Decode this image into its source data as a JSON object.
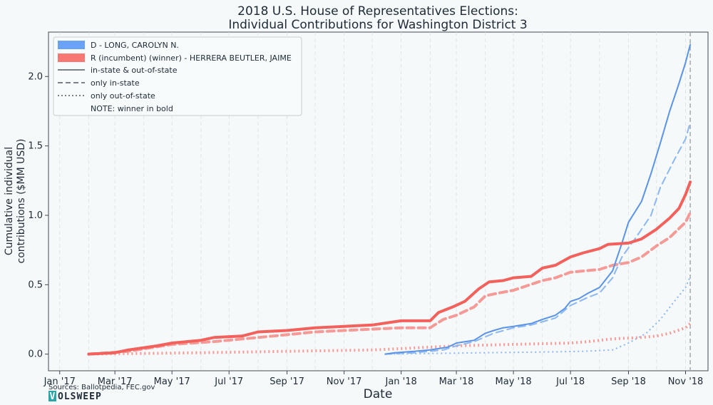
{
  "chart_data": {
    "type": "line",
    "title": "2018 U.S. House of Representatives Elections:",
    "subtitle": "Individual Contributions for Washington District 3",
    "xlabel": "Date",
    "ylabel_line1": "Cumulative individual",
    "ylabel_line2": "contributions ($MM USD)",
    "xlim": [
      "2016-12-20",
      "2018-11-25"
    ],
    "ylim": [
      -0.12,
      2.32
    ],
    "x_ticks": [
      {
        "date": "2017-01-01",
        "label": "Jan '17"
      },
      {
        "date": "2017-03-01",
        "label": "Mar '17"
      },
      {
        "date": "2017-05-01",
        "label": "May '17"
      },
      {
        "date": "2017-07-01",
        "label": "Jul '17"
      },
      {
        "date": "2017-09-01",
        "label": "Sep '17"
      },
      {
        "date": "2017-11-01",
        "label": "Nov '17"
      },
      {
        "date": "2018-01-01",
        "label": "Jan '18"
      },
      {
        "date": "2018-03-01",
        "label": "Mar '18"
      },
      {
        "date": "2018-05-01",
        "label": "May '18"
      },
      {
        "date": "2018-07-01",
        "label": "Jul '18"
      },
      {
        "date": "2018-09-01",
        "label": "Sep '18"
      },
      {
        "date": "2018-11-01",
        "label": "Nov '18"
      }
    ],
    "y_ticks": [
      {
        "value": 0.0,
        "label": "0.0"
      },
      {
        "value": 0.5,
        "label": "0.5"
      },
      {
        "value": 1.0,
        "label": "1.0"
      },
      {
        "value": 1.5,
        "label": "1.5"
      },
      {
        "value": 2.0,
        "label": "2.0"
      }
    ],
    "election_day": "2018-11-06",
    "grid": true,
    "legend_position": "top-left",
    "legend": [
      {
        "label": "D - LONG, CAROLYN N.",
        "kind": "patch",
        "color": "#6aa3f5"
      },
      {
        "label": "R (incumbent) (winner) - HERRERA BEUTLER, JAIME",
        "kind": "patch",
        "color": "#f87772"
      },
      {
        "label": "in-state & out-of-state",
        "kind": "solid",
        "color": "#7a828c"
      },
      {
        "label": "only in-state",
        "kind": "dashed",
        "color": "#7a828c"
      },
      {
        "label": "only out-of-state",
        "kind": "dotted",
        "color": "#7a828c"
      },
      {
        "label": "NOTE: winner in bold",
        "kind": "none",
        "color": ""
      }
    ],
    "series": [
      {
        "name": "LONG, CAROLYN N. (in-state & out-of-state)",
        "party": "D",
        "style": "solid",
        "color": "#5b93e6",
        "width": 2,
        "x": [
          "2017-12-15",
          "2017-12-25",
          "2018-01-15",
          "2018-02-01",
          "2018-02-20",
          "2018-03-01",
          "2018-03-20",
          "2018-04-01",
          "2018-04-10",
          "2018-04-20",
          "2018-05-01",
          "2018-05-20",
          "2018-06-01",
          "2018-06-15",
          "2018-06-25",
          "2018-07-01",
          "2018-07-10",
          "2018-07-20",
          "2018-08-01",
          "2018-08-15",
          "2018-08-25",
          "2018-09-01",
          "2018-09-15",
          "2018-09-25",
          "2018-10-05",
          "2018-10-15",
          "2018-10-25",
          "2018-11-01",
          "2018-11-06"
        ],
        "y": [
          0.0,
          0.01,
          0.02,
          0.03,
          0.05,
          0.08,
          0.1,
          0.15,
          0.17,
          0.19,
          0.2,
          0.22,
          0.25,
          0.28,
          0.33,
          0.38,
          0.4,
          0.44,
          0.48,
          0.6,
          0.8,
          0.95,
          1.1,
          1.3,
          1.52,
          1.75,
          1.95,
          2.1,
          2.23
        ]
      },
      {
        "name": "LONG, CAROLYN N. (only in-state)",
        "party": "D",
        "style": "dashed",
        "color": "#8cb7f2",
        "width": 2,
        "x": [
          "2017-12-15",
          "2018-01-15",
          "2018-02-15",
          "2018-03-01",
          "2018-03-20",
          "2018-04-10",
          "2018-05-01",
          "2018-05-20",
          "2018-06-15",
          "2018-07-01",
          "2018-07-20",
          "2018-08-01",
          "2018-08-15",
          "2018-08-25",
          "2018-09-10",
          "2018-09-25",
          "2018-10-05",
          "2018-10-20",
          "2018-11-01",
          "2018-11-06"
        ],
        "y": [
          0.0,
          0.01,
          0.03,
          0.06,
          0.09,
          0.15,
          0.19,
          0.21,
          0.26,
          0.35,
          0.41,
          0.44,
          0.55,
          0.7,
          0.85,
          1.0,
          1.2,
          1.4,
          1.55,
          1.67
        ]
      },
      {
        "name": "LONG, CAROLYN N. (only out-of-state)",
        "party": "D",
        "style": "dotted",
        "color": "#8cb7f2",
        "width": 2,
        "x": [
          "2017-12-15",
          "2018-02-01",
          "2018-04-01",
          "2018-06-01",
          "2018-07-15",
          "2018-08-15",
          "2018-09-01",
          "2018-09-20",
          "2018-10-05",
          "2018-10-20",
          "2018-11-01",
          "2018-11-06"
        ],
        "y": [
          0.0,
          0.005,
          0.01,
          0.015,
          0.02,
          0.03,
          0.08,
          0.15,
          0.25,
          0.38,
          0.48,
          0.56
        ]
      },
      {
        "name": "HERRERA BEUTLER, JAIME (in-state & out-of-state)",
        "party": "R",
        "style": "solid",
        "color": "#f2615c",
        "width": 4,
        "x": [
          "2017-02-01",
          "2017-03-01",
          "2017-03-15",
          "2017-04-15",
          "2017-05-01",
          "2017-06-01",
          "2017-06-15",
          "2017-07-15",
          "2017-08-01",
          "2017-09-01",
          "2017-10-01",
          "2017-11-01",
          "2017-12-01",
          "2018-01-01",
          "2018-02-01",
          "2018-02-10",
          "2018-02-25",
          "2018-03-10",
          "2018-03-25",
          "2018-04-05",
          "2018-04-20",
          "2018-05-01",
          "2018-05-20",
          "2018-06-01",
          "2018-06-15",
          "2018-07-01",
          "2018-07-15",
          "2018-08-01",
          "2018-08-10",
          "2018-09-01",
          "2018-09-15",
          "2018-10-01",
          "2018-10-15",
          "2018-10-25",
          "2018-11-01",
          "2018-11-06"
        ],
        "y": [
          0.0,
          0.01,
          0.03,
          0.06,
          0.08,
          0.1,
          0.12,
          0.13,
          0.16,
          0.17,
          0.19,
          0.2,
          0.21,
          0.24,
          0.24,
          0.3,
          0.34,
          0.38,
          0.47,
          0.52,
          0.53,
          0.55,
          0.56,
          0.62,
          0.64,
          0.7,
          0.73,
          0.76,
          0.79,
          0.8,
          0.83,
          0.9,
          0.98,
          1.05,
          1.15,
          1.24
        ]
      },
      {
        "name": "HERRERA BEUTLER, JAIME (only in-state)",
        "party": "R",
        "style": "dashed",
        "color": "#f59a96",
        "width": 4,
        "x": [
          "2017-02-01",
          "2017-03-15",
          "2017-05-01",
          "2017-06-15",
          "2017-08-01",
          "2017-09-01",
          "2017-10-01",
          "2017-11-01",
          "2017-12-01",
          "2018-01-01",
          "2018-02-01",
          "2018-02-15",
          "2018-03-01",
          "2018-03-20",
          "2018-04-01",
          "2018-04-15",
          "2018-05-01",
          "2018-06-01",
          "2018-06-15",
          "2018-07-01",
          "2018-08-01",
          "2018-08-15",
          "2018-09-01",
          "2018-09-15",
          "2018-10-01",
          "2018-10-15",
          "2018-11-01",
          "2018-11-06"
        ],
        "y": [
          0.0,
          0.02,
          0.07,
          0.09,
          0.12,
          0.14,
          0.16,
          0.17,
          0.18,
          0.19,
          0.19,
          0.25,
          0.28,
          0.34,
          0.42,
          0.44,
          0.46,
          0.53,
          0.55,
          0.59,
          0.61,
          0.64,
          0.66,
          0.7,
          0.78,
          0.84,
          0.95,
          1.02
        ]
      },
      {
        "name": "HERRERA BEUTLER, JAIME (only out-of-state)",
        "party": "R",
        "style": "dotted",
        "color": "#f59a96",
        "width": 4,
        "x": [
          "2017-02-01",
          "2017-06-01",
          "2017-09-01",
          "2017-12-01",
          "2018-01-01",
          "2018-03-01",
          "2018-05-01",
          "2018-07-01",
          "2018-07-20",
          "2018-08-15",
          "2018-09-15",
          "2018-10-01",
          "2018-10-15",
          "2018-11-01",
          "2018-11-06"
        ],
        "y": [
          0.0,
          0.01,
          0.02,
          0.03,
          0.04,
          0.06,
          0.07,
          0.08,
          0.09,
          0.11,
          0.12,
          0.13,
          0.15,
          0.19,
          0.22
        ]
      }
    ]
  },
  "sources": "Sources: Ballotpedia, FEC.gov",
  "brand": {
    "first": "V",
    "rest": "OLSWEEP"
  }
}
